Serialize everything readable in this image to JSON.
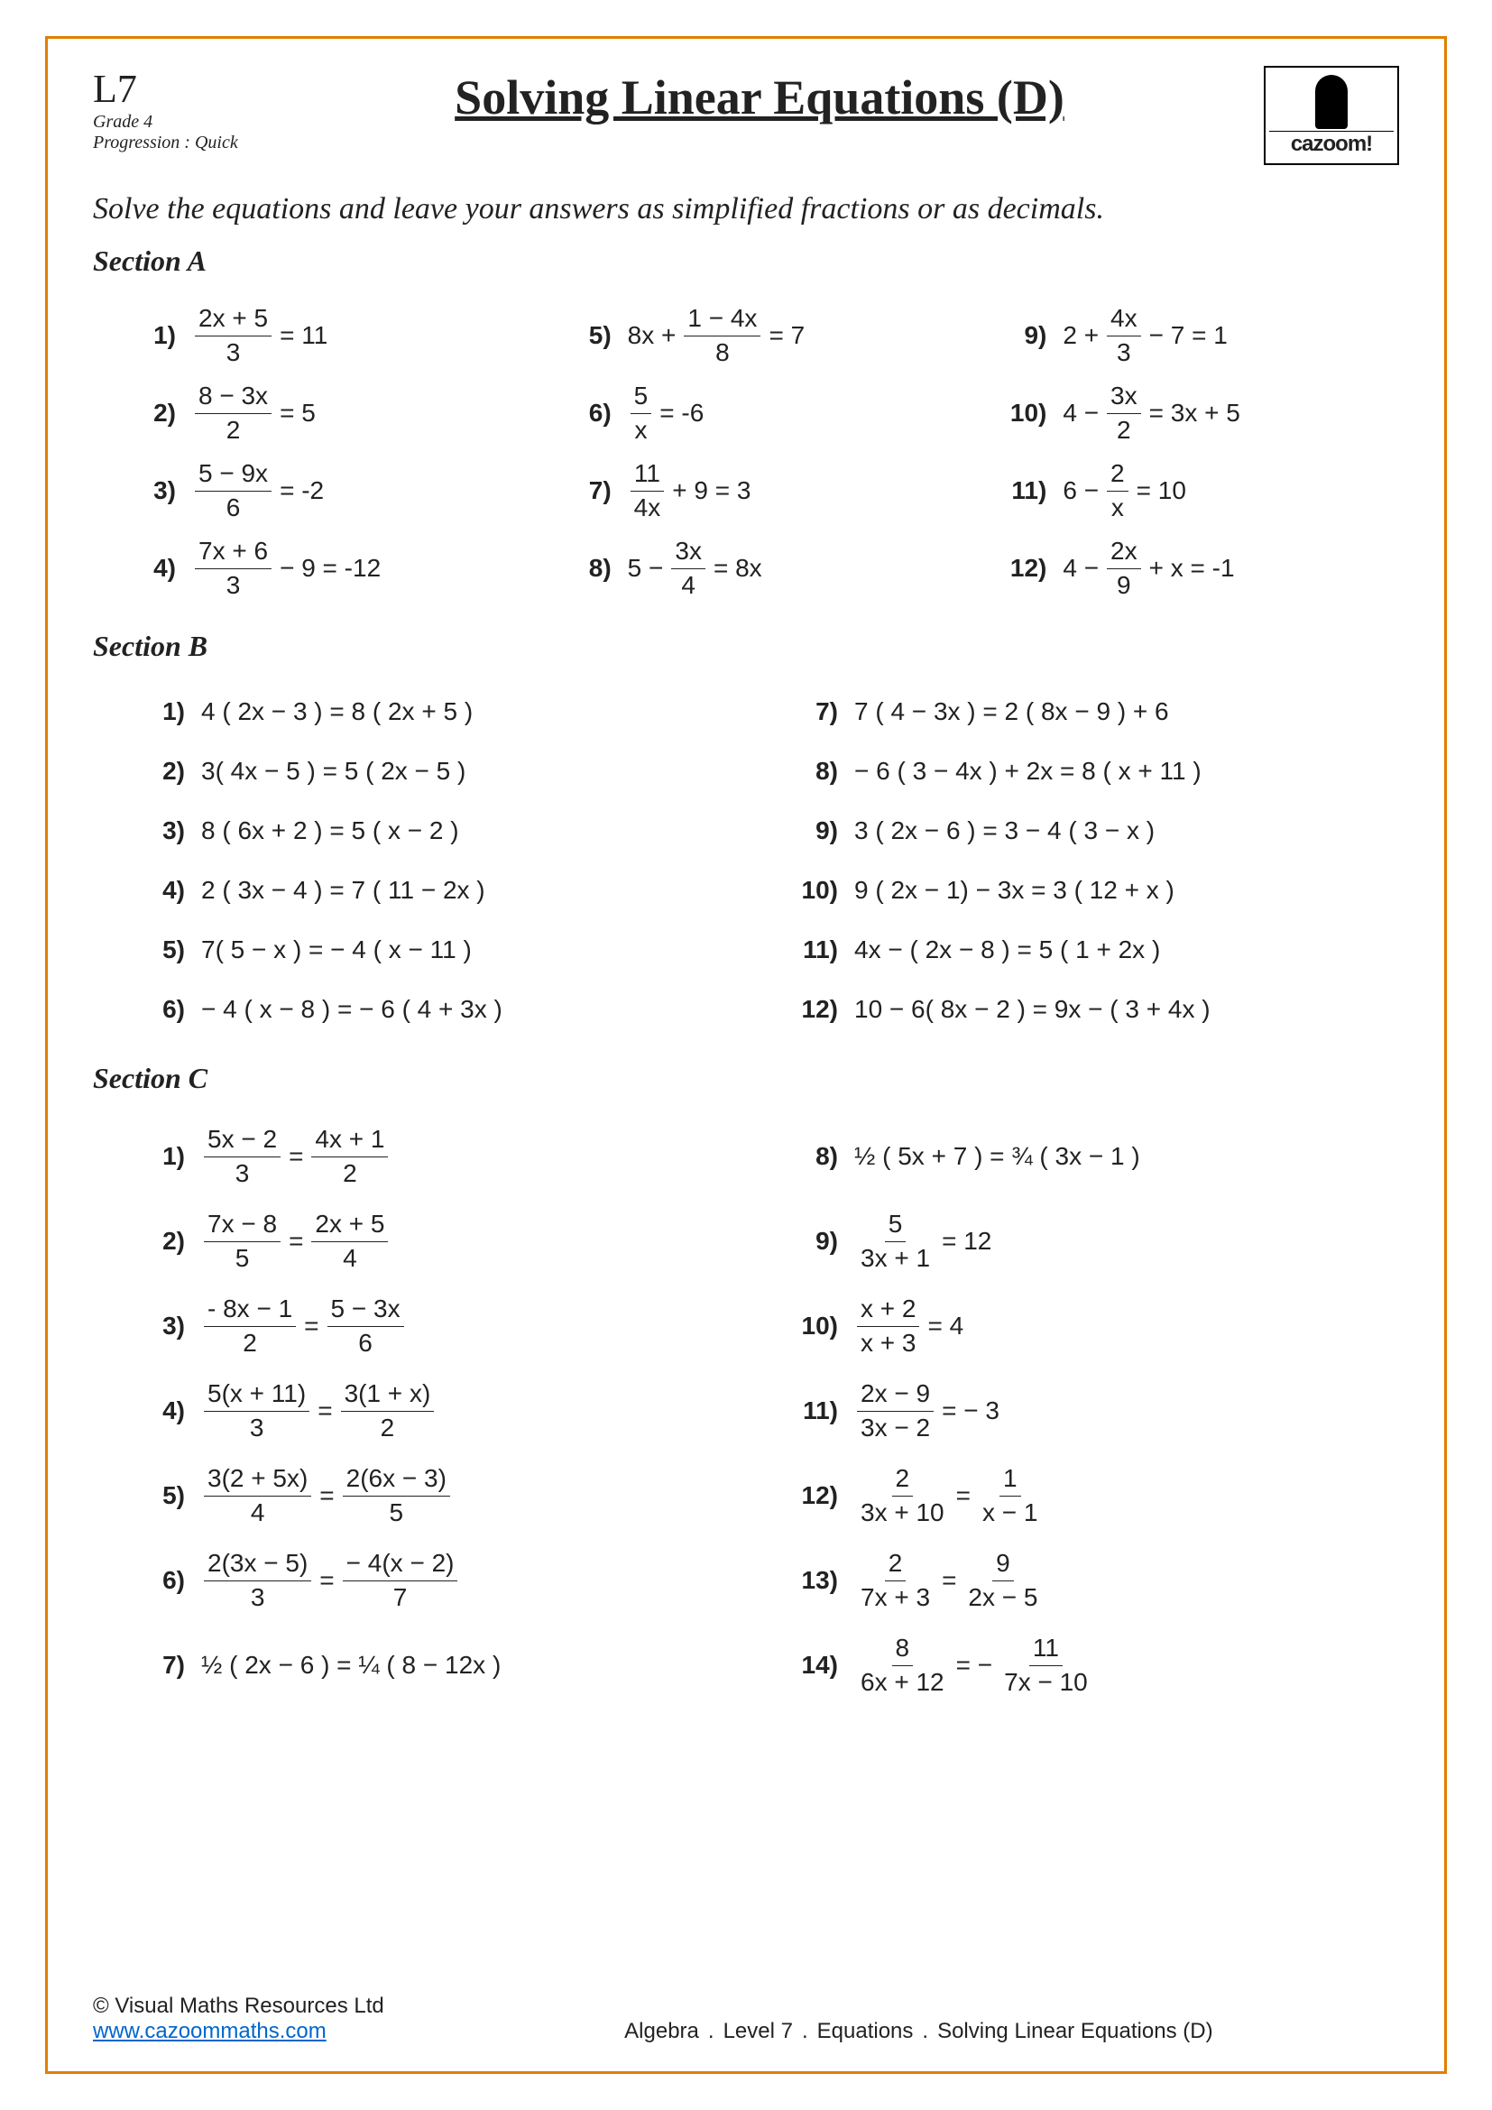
{
  "header": {
    "level_code": "L7",
    "grade": "Grade 4",
    "progression": "Progression : Quick",
    "title": "Solving Linear Equations (D)",
    "logo_text": "cazoom!"
  },
  "instruction": "Solve the equations and leave your answers as simplified fractions or as decimals.",
  "section_labels": {
    "a": "Section  A",
    "b": "Section  B",
    "c": "Section  C"
  },
  "sectionA": [
    {
      "n": "1)",
      "type": "frac_eq",
      "num": "2x + 5",
      "den": "3",
      "rhs": "= 11"
    },
    {
      "n": "2)",
      "type": "frac_eq",
      "num": "8 − 3x",
      "den": "2",
      "rhs": "= 5"
    },
    {
      "n": "3)",
      "type": "frac_eq",
      "num": "5 − 9x",
      "den": "6",
      "rhs": "= -2"
    },
    {
      "n": "4)",
      "type": "frac_mid",
      "num": "7x + 6",
      "den": "3",
      "post": "− 9 = -12"
    },
    {
      "n": "5)",
      "type": "pre_frac",
      "pre": "8x +",
      "num": "1 − 4x",
      "den": "8",
      "rhs": "= 7"
    },
    {
      "n": "6)",
      "type": "frac_eq",
      "num": "5",
      "den": "x",
      "rhs": "= -6"
    },
    {
      "n": "7)",
      "type": "frac_mid",
      "num": "11",
      "den": "4x",
      "post": "+ 9 = 3"
    },
    {
      "n": "8)",
      "type": "pre_frac",
      "pre": "5 −",
      "num": "3x",
      "den": "4",
      "rhs": "= 8x"
    },
    {
      "n": "9)",
      "type": "pre_frac",
      "pre": "2 +",
      "num": "4x",
      "den": "3",
      "rhs": "− 7 = 1"
    },
    {
      "n": "10)",
      "type": "pre_frac",
      "pre": "4 −",
      "num": "3x",
      "den": "2",
      "rhs": "= 3x + 5"
    },
    {
      "n": "11)",
      "type": "pre_frac",
      "pre": "6 −",
      "num": "2",
      "den": "x",
      "rhs": "= 10"
    },
    {
      "n": "12)",
      "type": "pre_frac",
      "pre": "4 −",
      "num": "2x",
      "den": "9",
      "rhs": "+ x = -1"
    }
  ],
  "sectionB": [
    {
      "n": "1)",
      "eq": "4 ( 2x − 3 ) = 8 ( 2x + 5 )"
    },
    {
      "n": "2)",
      "eq": "3( 4x − 5 ) = 5 ( 2x − 5 )"
    },
    {
      "n": "3)",
      "eq": "8 ( 6x + 2 ) = 5 ( x − 2 )"
    },
    {
      "n": "4)",
      "eq": "2 ( 3x − 4 ) = 7 ( 11 − 2x )"
    },
    {
      "n": "5)",
      "eq": "7( 5 − x ) = − 4 ( x − 11 )"
    },
    {
      "n": "6)",
      "eq": "− 4 ( x − 8 ) = − 6 ( 4 + 3x )"
    },
    {
      "n": "7)",
      "eq": "7 ( 4 − 3x ) = 2 ( 8x − 9 ) + 6"
    },
    {
      "n": "8)",
      "eq": "− 6 ( 3 − 4x ) + 2x = 8 ( x + 11 )"
    },
    {
      "n": "9)",
      "eq": "3 ( 2x − 6 ) = 3 − 4 ( 3 − x )"
    },
    {
      "n": "10)",
      "eq": "9 ( 2x − 1) − 3x = 3 ( 12 + x )"
    },
    {
      "n": "11)",
      "eq": "4x − ( 2x − 8 ) = 5 ( 1 + 2x )"
    },
    {
      "n": "12)",
      "eq": "10 − 6( 8x − 2 ) = 9x − ( 3 + 4x )"
    }
  ],
  "sectionC": [
    {
      "n": "1)",
      "type": "frac_frac",
      "ln": "5x − 2",
      "ld": "3",
      "rn": "4x + 1",
      "rd": "2"
    },
    {
      "n": "2)",
      "type": "frac_frac",
      "ln": "7x − 8",
      "ld": "5",
      "rn": "2x + 5",
      "rd": "4"
    },
    {
      "n": "3)",
      "type": "frac_frac",
      "ln": "- 8x − 1",
      "ld": "2",
      "rn": "5 − 3x",
      "rd": "6"
    },
    {
      "n": "4)",
      "type": "frac_frac",
      "ln": "5(x + 11)",
      "ld": "3",
      "rn": "3(1 + x)",
      "rd": "2"
    },
    {
      "n": "5)",
      "type": "frac_frac",
      "ln": "3(2 + 5x)",
      "ld": "4",
      "rn": "2(6x − 3)",
      "rd": "5"
    },
    {
      "n": "6)",
      "type": "frac_frac",
      "ln": "2(3x − 5)",
      "ld": "3",
      "rn": "− 4(x − 2)",
      "rd": "7"
    },
    {
      "n": "7)",
      "type": "plain",
      "eq": "½ ( 2x − 6 ) = ¼ ( 8 − 12x )"
    },
    {
      "n": "8)",
      "type": "plain",
      "eq": "½ ( 5x + 7 ) = ¾ ( 3x − 1 )"
    },
    {
      "n": "9)",
      "type": "frac_eq",
      "num": "5",
      "den": "3x + 1",
      "rhs": "= 12"
    },
    {
      "n": "10)",
      "type": "frac_eq",
      "num": "x + 2",
      "den": "x + 3",
      "rhs": "= 4"
    },
    {
      "n": "11)",
      "type": "frac_eq",
      "num": "2x − 9",
      "den": "3x − 2",
      "rhs": "= − 3"
    },
    {
      "n": "12)",
      "type": "frac_frac",
      "ln": "2",
      "ld": "3x + 10",
      "rn": "1",
      "rd": "x − 1"
    },
    {
      "n": "13)",
      "type": "frac_frac",
      "ln": "2",
      "ld": "7x + 3",
      "rn": "9",
      "rd": "2x − 5"
    },
    {
      "n": "14)",
      "type": "frac_neg_frac",
      "ln": "8",
      "ld": "6x + 12",
      "rn": "11",
      "rd": "7x − 10"
    }
  ],
  "footer": {
    "copyright": "© Visual Maths Resources Ltd",
    "link": "www.cazoommaths.com",
    "crumbs": [
      "Algebra",
      "Level 7",
      "Equations",
      "Solving Linear Equations (D)"
    ]
  },
  "colors": {
    "border": "#e08000",
    "text": "#222222",
    "link": "#0066cc",
    "background": "#ffffff"
  }
}
